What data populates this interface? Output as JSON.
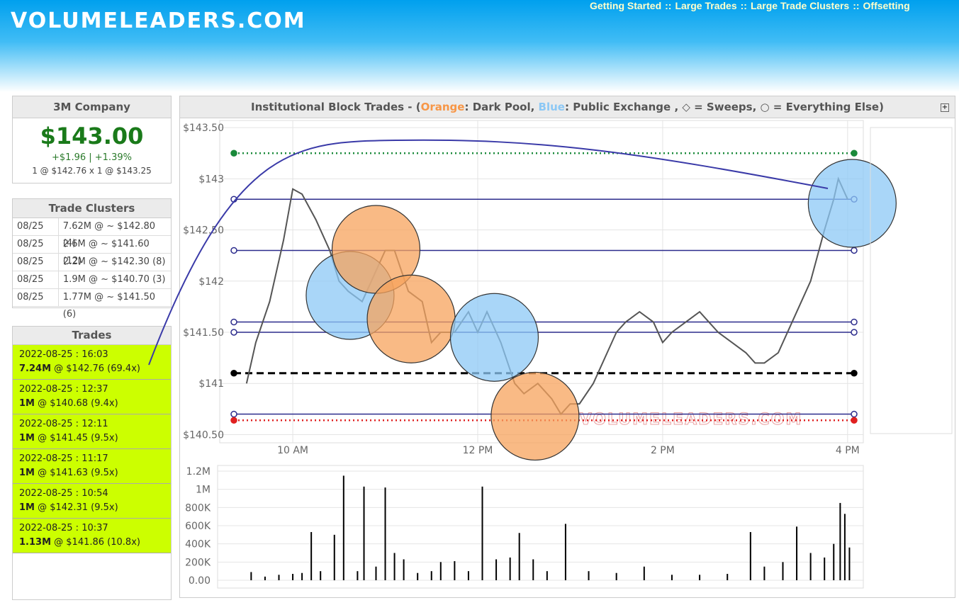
{
  "header": {
    "logo": "VOLUMELEADERS.COM",
    "nav": [
      "Getting Started",
      "Large Trades",
      "Large Trade Clusters",
      "Offsetting"
    ],
    "nav_separator": "::"
  },
  "company": {
    "name": "3M Company",
    "price": "$143.00",
    "change": "+$1.96 | +1.39%",
    "quote": "1 @ $142.76 x 1 @ $143.25"
  },
  "clusters": {
    "title": "Trade Clusters",
    "rows": [
      [
        "08/25",
        "7.62M @ ~ $142.80 (4)"
      ],
      [
        "08/25",
        "2.6M @ ~ $141.60 (12)"
      ],
      [
        "08/25",
        "2.2M @ ~ $142.30 (8)"
      ],
      [
        "08/25",
        "1.9M @ ~ $140.70 (3)"
      ],
      [
        "08/25",
        "1.77M @ ~ $141.50 (6)"
      ]
    ]
  },
  "trades": {
    "title": "Trades",
    "rows": [
      {
        "time": "2022-08-25 : 16:03",
        "size": "7.24M",
        "detail": "@ $142.76 (69.4x)"
      },
      {
        "time": "2022-08-25 : 12:37",
        "size": "1M",
        "detail": "@ $140.68 (9.4x)"
      },
      {
        "time": "2022-08-25 : 12:11",
        "size": "1M",
        "detail": "@ $141.45 (9.5x)"
      },
      {
        "time": "2022-08-25 : 11:17",
        "size": "1M",
        "detail": "@ $141.63 (9.5x)"
      },
      {
        "time": "2022-08-25 : 10:54",
        "size": "1M",
        "detail": "@ $142.31 (9.5x)"
      },
      {
        "time": "2022-08-25 : 10:37",
        "size": "1.13M",
        "detail": "@ $141.86 (10.8x)"
      }
    ]
  },
  "chart_data": [
    {
      "type": "line",
      "title_parts": [
        {
          "text": "Institutional Block Trades - (",
          "color": "#555555"
        },
        {
          "text": "Orange",
          "color": "#f79646"
        },
        {
          "text": ": Dark Pool, ",
          "color": "#555555"
        },
        {
          "text": "Blue",
          "color": "#8cc8f5"
        },
        {
          "text": ": Public Exchange , ◇ = Sweeps, ○ = Everything Else)",
          "color": "#555555"
        }
      ],
      "x": [
        9.5,
        9.6,
        9.75,
        9.9,
        10.0,
        10.1,
        10.25,
        10.4,
        10.5,
        10.6,
        10.75,
        10.9,
        11.0,
        11.1,
        11.25,
        11.4,
        11.5,
        11.6,
        11.75,
        11.9,
        12.0,
        12.1,
        12.25,
        12.4,
        12.5,
        12.65,
        12.8,
        12.9,
        13.0,
        13.1,
        13.25,
        13.4,
        13.5,
        13.6,
        13.75,
        13.9,
        14.0,
        14.1,
        14.25,
        14.4,
        14.5,
        14.6,
        14.75,
        14.9,
        15.0,
        15.1,
        15.25,
        15.4,
        15.5,
        15.6,
        15.75,
        15.85,
        15.9,
        16.0
      ],
      "values": [
        141.0,
        141.4,
        141.8,
        142.4,
        142.9,
        142.85,
        142.6,
        142.3,
        142.0,
        141.9,
        141.8,
        142.1,
        142.3,
        142.3,
        141.9,
        141.8,
        141.4,
        141.5,
        141.5,
        141.7,
        141.5,
        141.7,
        141.4,
        141.0,
        140.9,
        141.0,
        140.85,
        140.7,
        140.8,
        140.8,
        141.0,
        141.3,
        141.5,
        141.6,
        141.7,
        141.6,
        141.4,
        141.5,
        141.6,
        141.7,
        141.6,
        141.5,
        141.4,
        141.3,
        141.2,
        141.2,
        141.3,
        141.6,
        141.8,
        142.0,
        142.5,
        142.8,
        143.0,
        142.8
      ],
      "color": "#555555",
      "xlim": [
        9.21,
        16.17
      ],
      "ylim": [
        140.42,
        143.57
      ],
      "xticks": [
        {
          "value": 10,
          "label": "10 AM"
        },
        {
          "value": 12,
          "label": "12 PM"
        },
        {
          "value": 14,
          "label": "2 PM"
        },
        {
          "value": 16,
          "label": "4 PM"
        }
      ],
      "yticks": [
        {
          "value": 140.5,
          "label": "$140.50"
        },
        {
          "value": 141,
          "label": "$141"
        },
        {
          "value": 141.5,
          "label": "$141.50"
        },
        {
          "value": 142,
          "label": "$142"
        },
        {
          "value": 142.5,
          "label": "$142.50"
        },
        {
          "value": 143,
          "label": "$143"
        },
        {
          "value": 143.5,
          "label": "$143.50"
        }
      ],
      "grid": true,
      "bubbles": [
        {
          "x": 10.62,
          "y": 141.86,
          "color": "#8cc8f5"
        },
        {
          "x": 10.9,
          "y": 142.31,
          "color": "#f7a35c"
        },
        {
          "x": 11.28,
          "y": 141.63,
          "color": "#f7a35c"
        },
        {
          "x": 12.18,
          "y": 141.45,
          "color": "#8cc8f5"
        },
        {
          "x": 12.62,
          "y": 140.68,
          "color": "#f7a35c"
        },
        {
          "x": 16.05,
          "y": 142.76,
          "color": "#8cc8f5"
        }
      ],
      "levels": [
        {
          "value": 143.25,
          "color": "#1a8a3a",
          "style": "dotted"
        },
        {
          "value": 142.8,
          "color": "#2b2b8c",
          "style": "solid"
        },
        {
          "value": 142.3,
          "color": "#2b2b8c",
          "style": "solid"
        },
        {
          "value": 141.6,
          "color": "#2b2b8c",
          "style": "solid"
        },
        {
          "value": 141.5,
          "color": "#2b2b8c",
          "style": "solid"
        },
        {
          "value": 141.1,
          "color": "#000000",
          "style": "dashed"
        },
        {
          "value": 140.7,
          "color": "#2b2b8c",
          "style": "solid"
        },
        {
          "value": 140.64,
          "color": "#e02020",
          "style": "dotted"
        }
      ]
    },
    {
      "type": "bar",
      "x": [
        9.55,
        9.7,
        9.85,
        10.0,
        10.1,
        10.2,
        10.3,
        10.45,
        10.55,
        10.7,
        10.77,
        10.9,
        11.0,
        11.1,
        11.2,
        11.35,
        11.5,
        11.6,
        11.75,
        11.9,
        12.05,
        12.2,
        12.35,
        12.45,
        12.6,
        12.75,
        12.95,
        13.2,
        13.5,
        13.8,
        14.1,
        14.4,
        14.7,
        14.95,
        15.1,
        15.3,
        15.45,
        15.6,
        15.75,
        15.85,
        15.92,
        15.97,
        16.02
      ],
      "values": [
        90000,
        40000,
        60000,
        70000,
        80000,
        530000,
        100000,
        500000,
        1150000,
        100000,
        1030000,
        150000,
        1020000,
        300000,
        230000,
        80000,
        100000,
        200000,
        210000,
        100000,
        1030000,
        230000,
        250000,
        520000,
        230000,
        100000,
        620000,
        100000,
        80000,
        150000,
        60000,
        60000,
        70000,
        530000,
        150000,
        200000,
        590000,
        300000,
        250000,
        400000,
        850000,
        730000,
        360000
      ],
      "color": "#000000",
      "xlim": [
        9.21,
        16.17
      ],
      "ylim": [
        0,
        1200000
      ],
      "yticks": [
        {
          "value": 0,
          "label": "0.00"
        },
        {
          "value": 200000,
          "label": "200K"
        },
        {
          "value": 400000,
          "label": "400K"
        },
        {
          "value": 600000,
          "label": "600K"
        },
        {
          "value": 800000,
          "label": "800K"
        },
        {
          "value": 1000000,
          "label": "1M"
        },
        {
          "value": 1200000,
          "label": "1.2M"
        }
      ],
      "grid": true
    }
  ]
}
